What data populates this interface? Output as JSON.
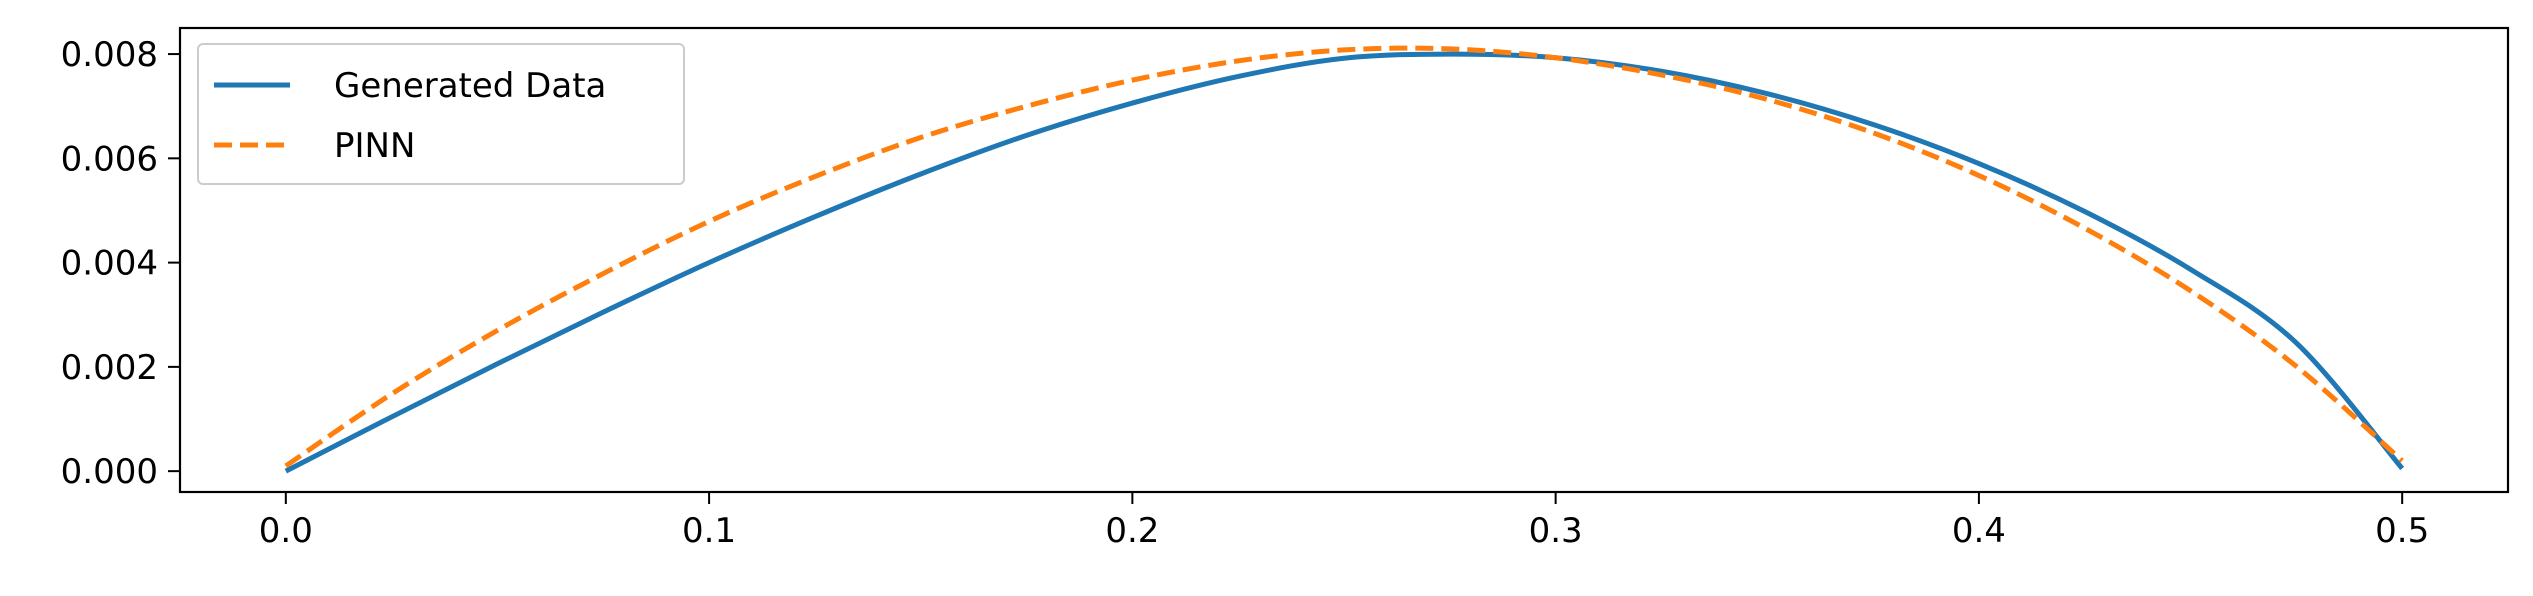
{
  "chart_data": {
    "type": "line",
    "title": "",
    "xlabel": "",
    "ylabel": "",
    "xlim": [
      -0.025,
      0.525
    ],
    "ylim": [
      -0.0004,
      0.0085
    ],
    "x_ticks": [
      0.0,
      0.1,
      0.2,
      0.3,
      0.4,
      0.5
    ],
    "x_tick_labels": [
      "0.0",
      "0.1",
      "0.2",
      "0.3",
      "0.4",
      "0.5"
    ],
    "y_ticks": [
      0.0,
      0.002,
      0.004,
      0.006,
      0.008
    ],
    "y_tick_labels": [
      "0.000",
      "0.002",
      "0.004",
      "0.006",
      "0.008"
    ],
    "grid": false,
    "legend": {
      "position": "top-left"
    },
    "series": [
      {
        "name": "Generated Data",
        "color": "#1f77b4",
        "style": "solid",
        "x": [
          0.0,
          0.025,
          0.05,
          0.075,
          0.1,
          0.125,
          0.15,
          0.175,
          0.2,
          0.225,
          0.25,
          0.275,
          0.3,
          0.325,
          0.35,
          0.375,
          0.4,
          0.425,
          0.45,
          0.475,
          0.5
        ],
        "y": [
          0.0,
          0.00104,
          0.00206,
          0.00305,
          0.004,
          0.00488,
          0.0057,
          0.00644,
          0.00706,
          0.00757,
          0.00792,
          0.008,
          0.00793,
          0.00767,
          0.00724,
          0.00665,
          0.0059,
          0.00498,
          0.00387,
          0.00246,
          5e-05
        ]
      },
      {
        "name": "PINN",
        "color": "#ff7f0e",
        "style": "dashed",
        "x": [
          0.0,
          0.025,
          0.05,
          0.075,
          0.1,
          0.125,
          0.15,
          0.175,
          0.2,
          0.225,
          0.25,
          0.275,
          0.3,
          0.325,
          0.35,
          0.375,
          0.4,
          0.425,
          0.45,
          0.475,
          0.5
        ],
        "y": [
          0.0001,
          0.00148,
          0.0027,
          0.00379,
          0.00479,
          0.00565,
          0.0064,
          0.007,
          0.0075,
          0.00787,
          0.00808,
          0.0081,
          0.00793,
          0.0076,
          0.00713,
          0.00649,
          0.00567,
          0.00466,
          0.00346,
          0.00201,
          0.0002
        ]
      }
    ]
  }
}
